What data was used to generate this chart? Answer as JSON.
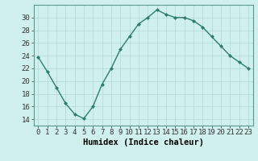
{
  "x": [
    0,
    1,
    2,
    3,
    4,
    5,
    6,
    7,
    8,
    9,
    10,
    11,
    12,
    13,
    14,
    15,
    16,
    17,
    18,
    19,
    20,
    21,
    22,
    23
  ],
  "y": [
    23.8,
    21.5,
    19.0,
    16.5,
    14.8,
    14.1,
    16.0,
    19.5,
    22.0,
    25.0,
    27.0,
    29.0,
    30.0,
    31.2,
    30.5,
    30.0,
    30.0,
    29.5,
    28.5,
    27.0,
    25.5,
    24.0,
    23.0,
    22.0
  ],
  "line_color": "#2e7d6e",
  "marker": "D",
  "marker_size": 2.0,
  "bg_color": "#cff0ec",
  "grid_color": "#b0d8d4",
  "xlabel": "Humidex (Indice chaleur)",
  "xlim": [
    -0.5,
    23.5
  ],
  "ylim": [
    13,
    32
  ],
  "yticks": [
    14,
    16,
    18,
    20,
    22,
    24,
    26,
    28,
    30
  ],
  "xticks": [
    0,
    1,
    2,
    3,
    4,
    5,
    6,
    7,
    8,
    9,
    10,
    11,
    12,
    13,
    14,
    15,
    16,
    17,
    18,
    19,
    20,
    21,
    22,
    23
  ],
  "tick_label_fontsize": 6.5,
  "xlabel_fontsize": 7.5,
  "linewidth": 1.0
}
